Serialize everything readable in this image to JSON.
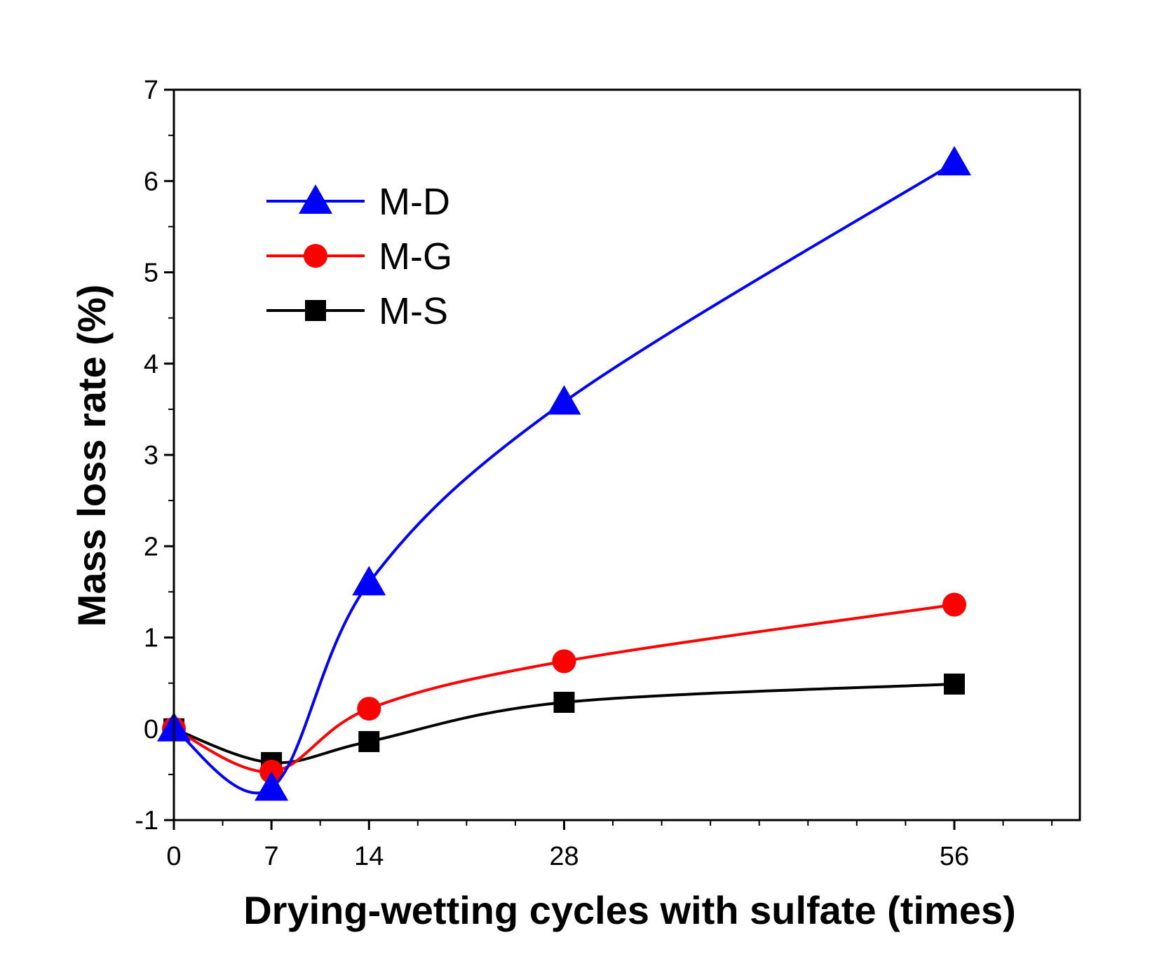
{
  "chart_data": {
    "type": "line",
    "title": "",
    "xlabel": "Drying-wetting cycles with sulfate (times)",
    "ylabel": "Mass loss rate (%)",
    "xlim": [
      0,
      65
    ],
    "ylim": [
      -1,
      7
    ],
    "x_tick_values": [
      0,
      7,
      14,
      28,
      56
    ],
    "x_tick_labels": [
      "0",
      "7",
      "14",
      "28",
      "56"
    ],
    "y_tick_values": [
      -1,
      0,
      1,
      2,
      3,
      4,
      5,
      6,
      7
    ],
    "y_tick_labels": [
      "-1",
      "0",
      "1",
      "2",
      "3",
      "4",
      "5",
      "6",
      "7"
    ],
    "grid": false,
    "legend_position": "top-left",
    "series": [
      {
        "name": "M-D",
        "color": "#0000ff",
        "marker": "triangle",
        "x": [
          0,
          7,
          14,
          28,
          56
        ],
        "y": [
          0.0,
          -0.65,
          1.6,
          3.58,
          6.2
        ]
      },
      {
        "name": "M-G",
        "color": "#ff0000",
        "marker": "circle",
        "x": [
          0,
          7,
          14,
          28,
          56
        ],
        "y": [
          0.0,
          -0.47,
          0.22,
          0.74,
          1.36
        ]
      },
      {
        "name": "M-S",
        "color": "#000000",
        "marker": "square",
        "x": [
          0,
          7,
          14,
          28,
          56
        ],
        "y": [
          0.0,
          -0.37,
          -0.14,
          0.29,
          0.49
        ]
      }
    ]
  }
}
